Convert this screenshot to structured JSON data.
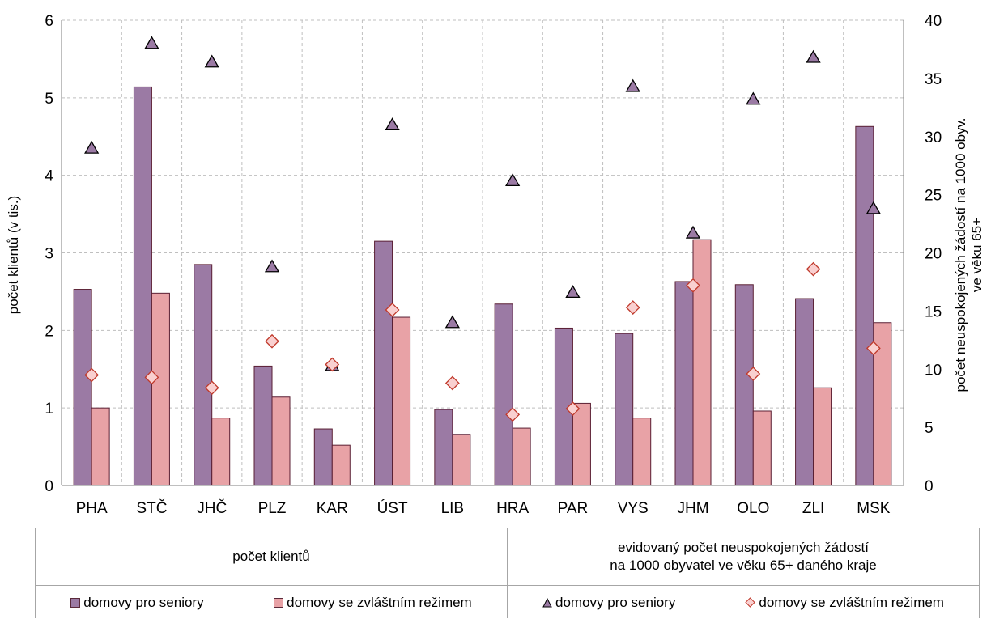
{
  "chart_data": {
    "type": "bar",
    "categories": [
      "PHA",
      "STČ",
      "JHČ",
      "PLZ",
      "KAR",
      "ÚST",
      "LIB",
      "HRA",
      "PAR",
      "VYS",
      "JHM",
      "OLO",
      "ZLI",
      "MSK"
    ],
    "left_axis": {
      "label": "počet klientů (v tis.)",
      "ylim": [
        0,
        6
      ],
      "ticks": [
        "0",
        "1",
        "2",
        "3",
        "4",
        "5",
        "6"
      ]
    },
    "right_axis": {
      "label_line1": "počet neuspokojených žádostí na 1000 obyv.",
      "label_line2": "ve věku 65+",
      "ylim": [
        0,
        40
      ],
      "ticks": [
        "0",
        "5",
        "10",
        "15",
        "20",
        "25",
        "30",
        "35",
        "40"
      ]
    },
    "grid": true,
    "bar_series": [
      {
        "name": "domovy pro seniory",
        "axis": "left",
        "color": "#9b7aa4",
        "values": [
          2.53,
          5.14,
          2.85,
          1.54,
          0.73,
          3.15,
          0.98,
          2.34,
          2.03,
          1.96,
          2.63,
          2.59,
          2.41,
          4.63
        ]
      },
      {
        "name": "domovy se zvláštním režimem",
        "axis": "left",
        "color": "#e8a2a6",
        "values": [
          1.0,
          2.48,
          0.87,
          1.14,
          0.52,
          2.17,
          0.66,
          0.74,
          1.06,
          0.87,
          3.17,
          0.96,
          1.26,
          2.1
        ]
      }
    ],
    "marker_series": [
      {
        "name": "domovy pro seniory",
        "axis": "right",
        "marker": "triangle",
        "color": "#9b7aa4",
        "values": [
          29.0,
          38.0,
          36.4,
          18.8,
          10.3,
          31.0,
          14.0,
          26.2,
          16.6,
          34.3,
          21.7,
          33.2,
          36.8,
          23.8
        ]
      },
      {
        "name": "domovy se zvláštním režimem",
        "axis": "right",
        "marker": "diamond",
        "color": "#f9d0d0",
        "values": [
          9.5,
          9.3,
          8.4,
          12.4,
          10.4,
          15.1,
          8.8,
          6.1,
          6.6,
          15.3,
          17.2,
          9.6,
          18.6,
          11.8
        ]
      }
    ],
    "legend": {
      "group1_title": "počet klientů",
      "group2_title": "evidovaný počet neuspokojených žádostí\nna 1000 obyvatel ve věku 65+ daného kraje",
      "position": "bottom"
    }
  }
}
